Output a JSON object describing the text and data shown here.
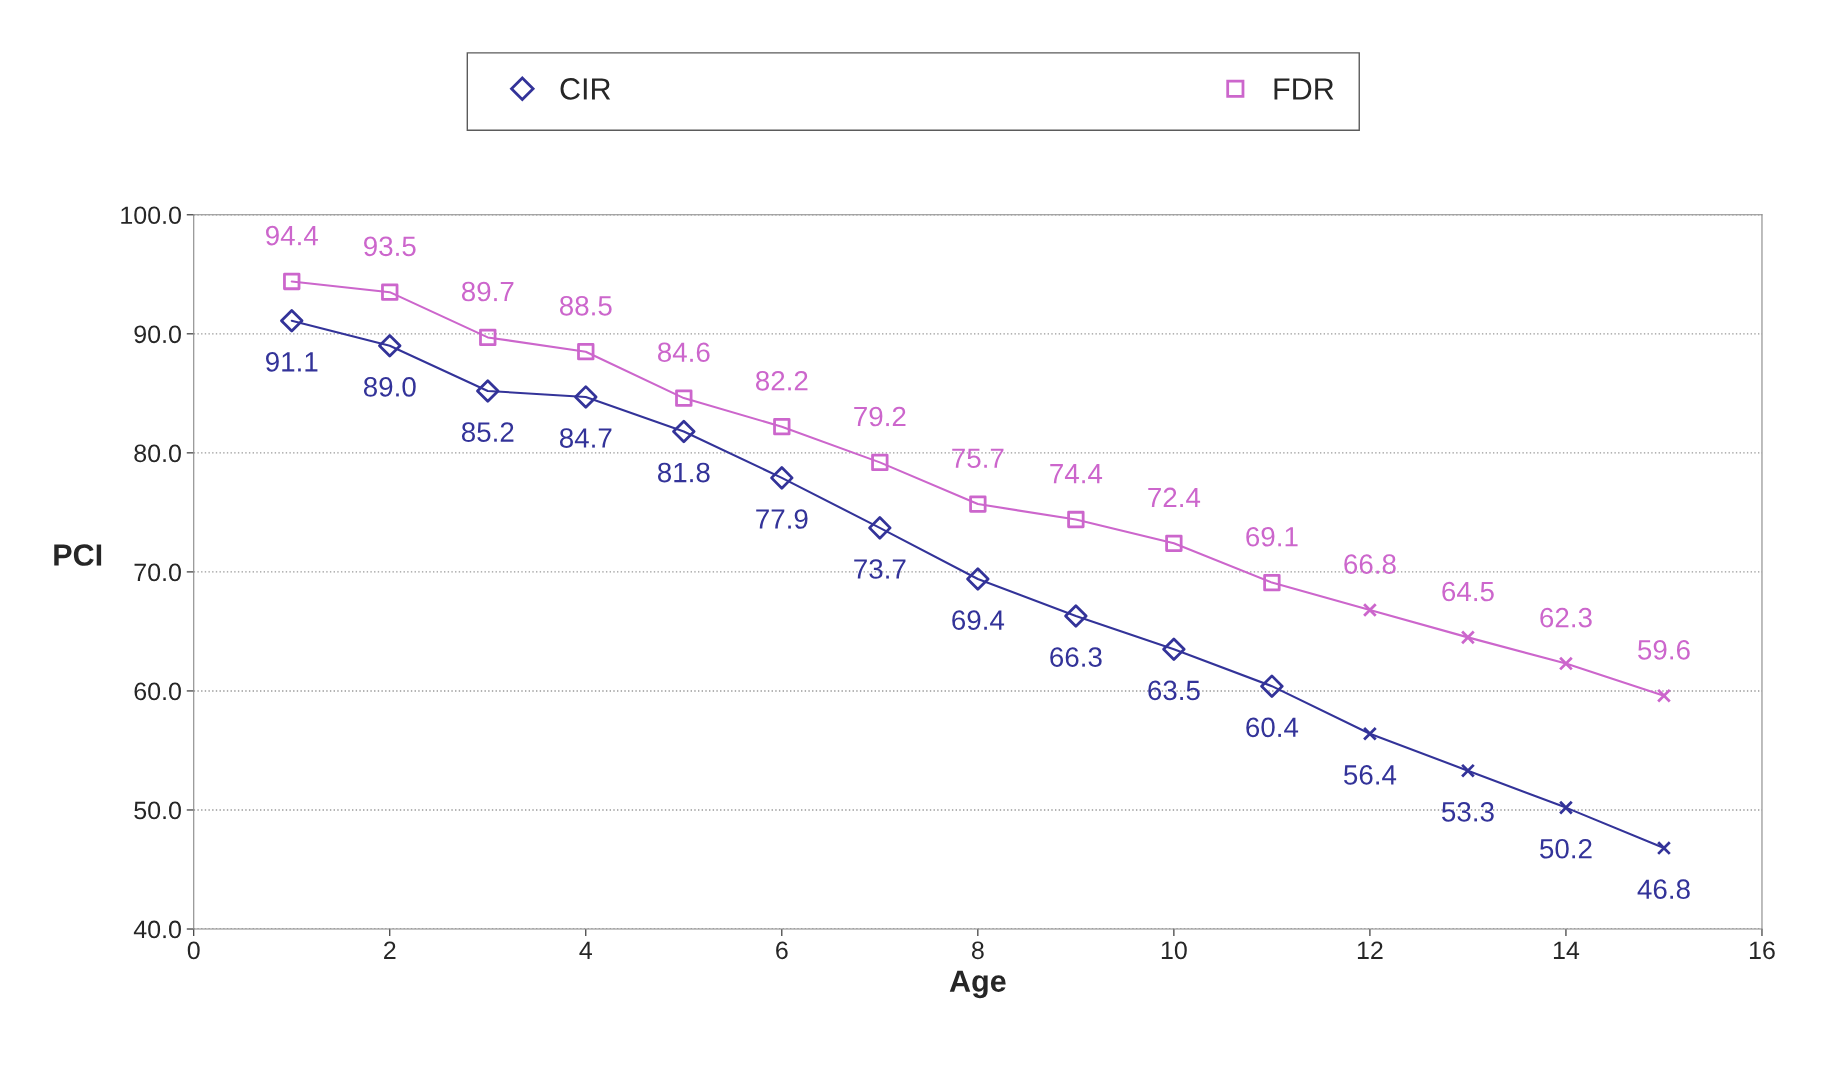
{
  "chart_data": {
    "type": "line",
    "xlabel": "Age",
    "ylabel": "PCI",
    "x": [
      1,
      2,
      3,
      4,
      5,
      6,
      7,
      8,
      9,
      10,
      11,
      12,
      13,
      14,
      15
    ],
    "series": [
      {
        "color": "#333399",
        "marker": "none",
        "values": [
          91.1,
          89.0,
          85.2,
          84.7,
          81.8,
          77.9,
          73.7,
          69.4,
          66.3,
          63.5,
          60.4,
          56.4,
          53.3,
          50.2,
          46.8
        ],
        "value_labels": [
          "91.1",
          "89.0",
          "85.2",
          "84.7",
          "81.8",
          "77.9",
          "73.7",
          "69.4",
          "66.3",
          "63.5",
          "60.4",
          "56.4",
          "53.3",
          "50.2",
          "46.8"
        ]
      },
      {
        "color": "#cc66cc",
        "marker": "none",
        "values": [
          94.4,
          93.5,
          89.7,
          88.5,
          84.6,
          82.2,
          79.2,
          75.7,
          74.4,
          72.4,
          69.1,
          66.8,
          64.5,
          62.3,
          59.6
        ],
        "value_labels": [
          "94.4",
          "93.5",
          "89.7",
          "88.5",
          "84.6",
          "82.2",
          "79.2",
          "75.7",
          "74.4",
          "72.4",
          "69.1",
          "66.8",
          "64.5",
          "62.3",
          "59.6"
        ]
      },
      {
        "type": "scatter",
        "name": "CIR",
        "color": "#333399",
        "marker": "diamond",
        "x": [
          1,
          2,
          3,
          4,
          5,
          6,
          7,
          8,
          9,
          10,
          11
        ],
        "values": [
          91.1,
          89.0,
          85.2,
          84.7,
          81.8,
          77.9,
          73.7,
          69.4,
          66.3,
          63.5,
          60.4
        ]
      },
      {
        "type": "scatter",
        "name": "FDR",
        "color": "#cc66cc",
        "marker": "square",
        "x": [
          1,
          2,
          3,
          4,
          5,
          6,
          7,
          8,
          9,
          10,
          11
        ],
        "values": [
          94.4,
          93.5,
          89.7,
          88.5,
          84.6,
          82.2,
          79.2,
          75.7,
          74.4,
          72.4,
          69.1
        ]
      },
      {
        "type": "scatter",
        "color": "#333399",
        "marker": "cross",
        "x": [
          12,
          13,
          14,
          15
        ],
        "values": [
          56.4,
          53.3,
          50.2,
          46.8
        ]
      },
      {
        "type": "scatter",
        "color": "#cc66cc",
        "marker": "cross",
        "x": [
          12,
          13,
          14,
          15
        ],
        "values": [
          66.8,
          64.5,
          62.3,
          59.6
        ]
      }
    ],
    "xlim": [
      0,
      16
    ],
    "xticks": [
      0,
      2,
      4,
      6,
      8,
      10,
      12,
      14,
      16
    ],
    "ylim": [
      40,
      100
    ],
    "yticks": [
      {
        "value": 40,
        "label": "40.0"
      },
      {
        "value": 50,
        "label": "50.0"
      },
      {
        "value": 60,
        "label": "60.0"
      },
      {
        "value": 70,
        "label": "70.0"
      },
      {
        "value": 80,
        "label": "80.0"
      },
      {
        "value": 90,
        "label": "90.0"
      },
      {
        "value": 100,
        "label": "100.0"
      }
    ],
    "grid": "y",
    "legend": "top"
  }
}
